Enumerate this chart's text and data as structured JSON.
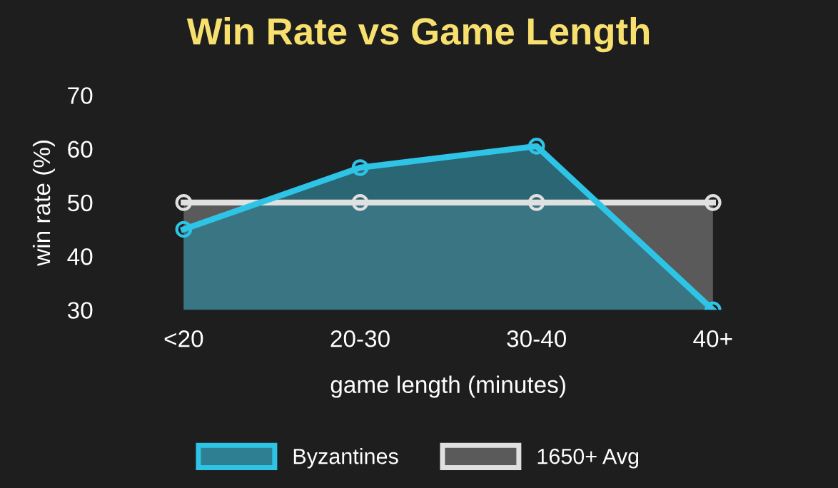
{
  "chart_data": {
    "type": "area",
    "title": "Win Rate vs Game Length",
    "xlabel": "game length (minutes)",
    "ylabel": "win rate (%)",
    "categories": [
      "<20",
      "20-30",
      "30-40",
      "40+"
    ],
    "series": [
      {
        "name": "Byzantines",
        "color": "#2ec4e6",
        "values": [
          45,
          56.5,
          60.5,
          30
        ]
      },
      {
        "name": "1650+ Avg",
        "color": "#e0e0e0",
        "values": [
          50,
          50,
          50,
          50
        ]
      }
    ],
    "ylim": [
      30,
      70
    ],
    "yticks": [
      30,
      40,
      50,
      60,
      70
    ],
    "grid": false,
    "legend": "bottom",
    "marker": "circle",
    "line_style": "solid"
  }
}
